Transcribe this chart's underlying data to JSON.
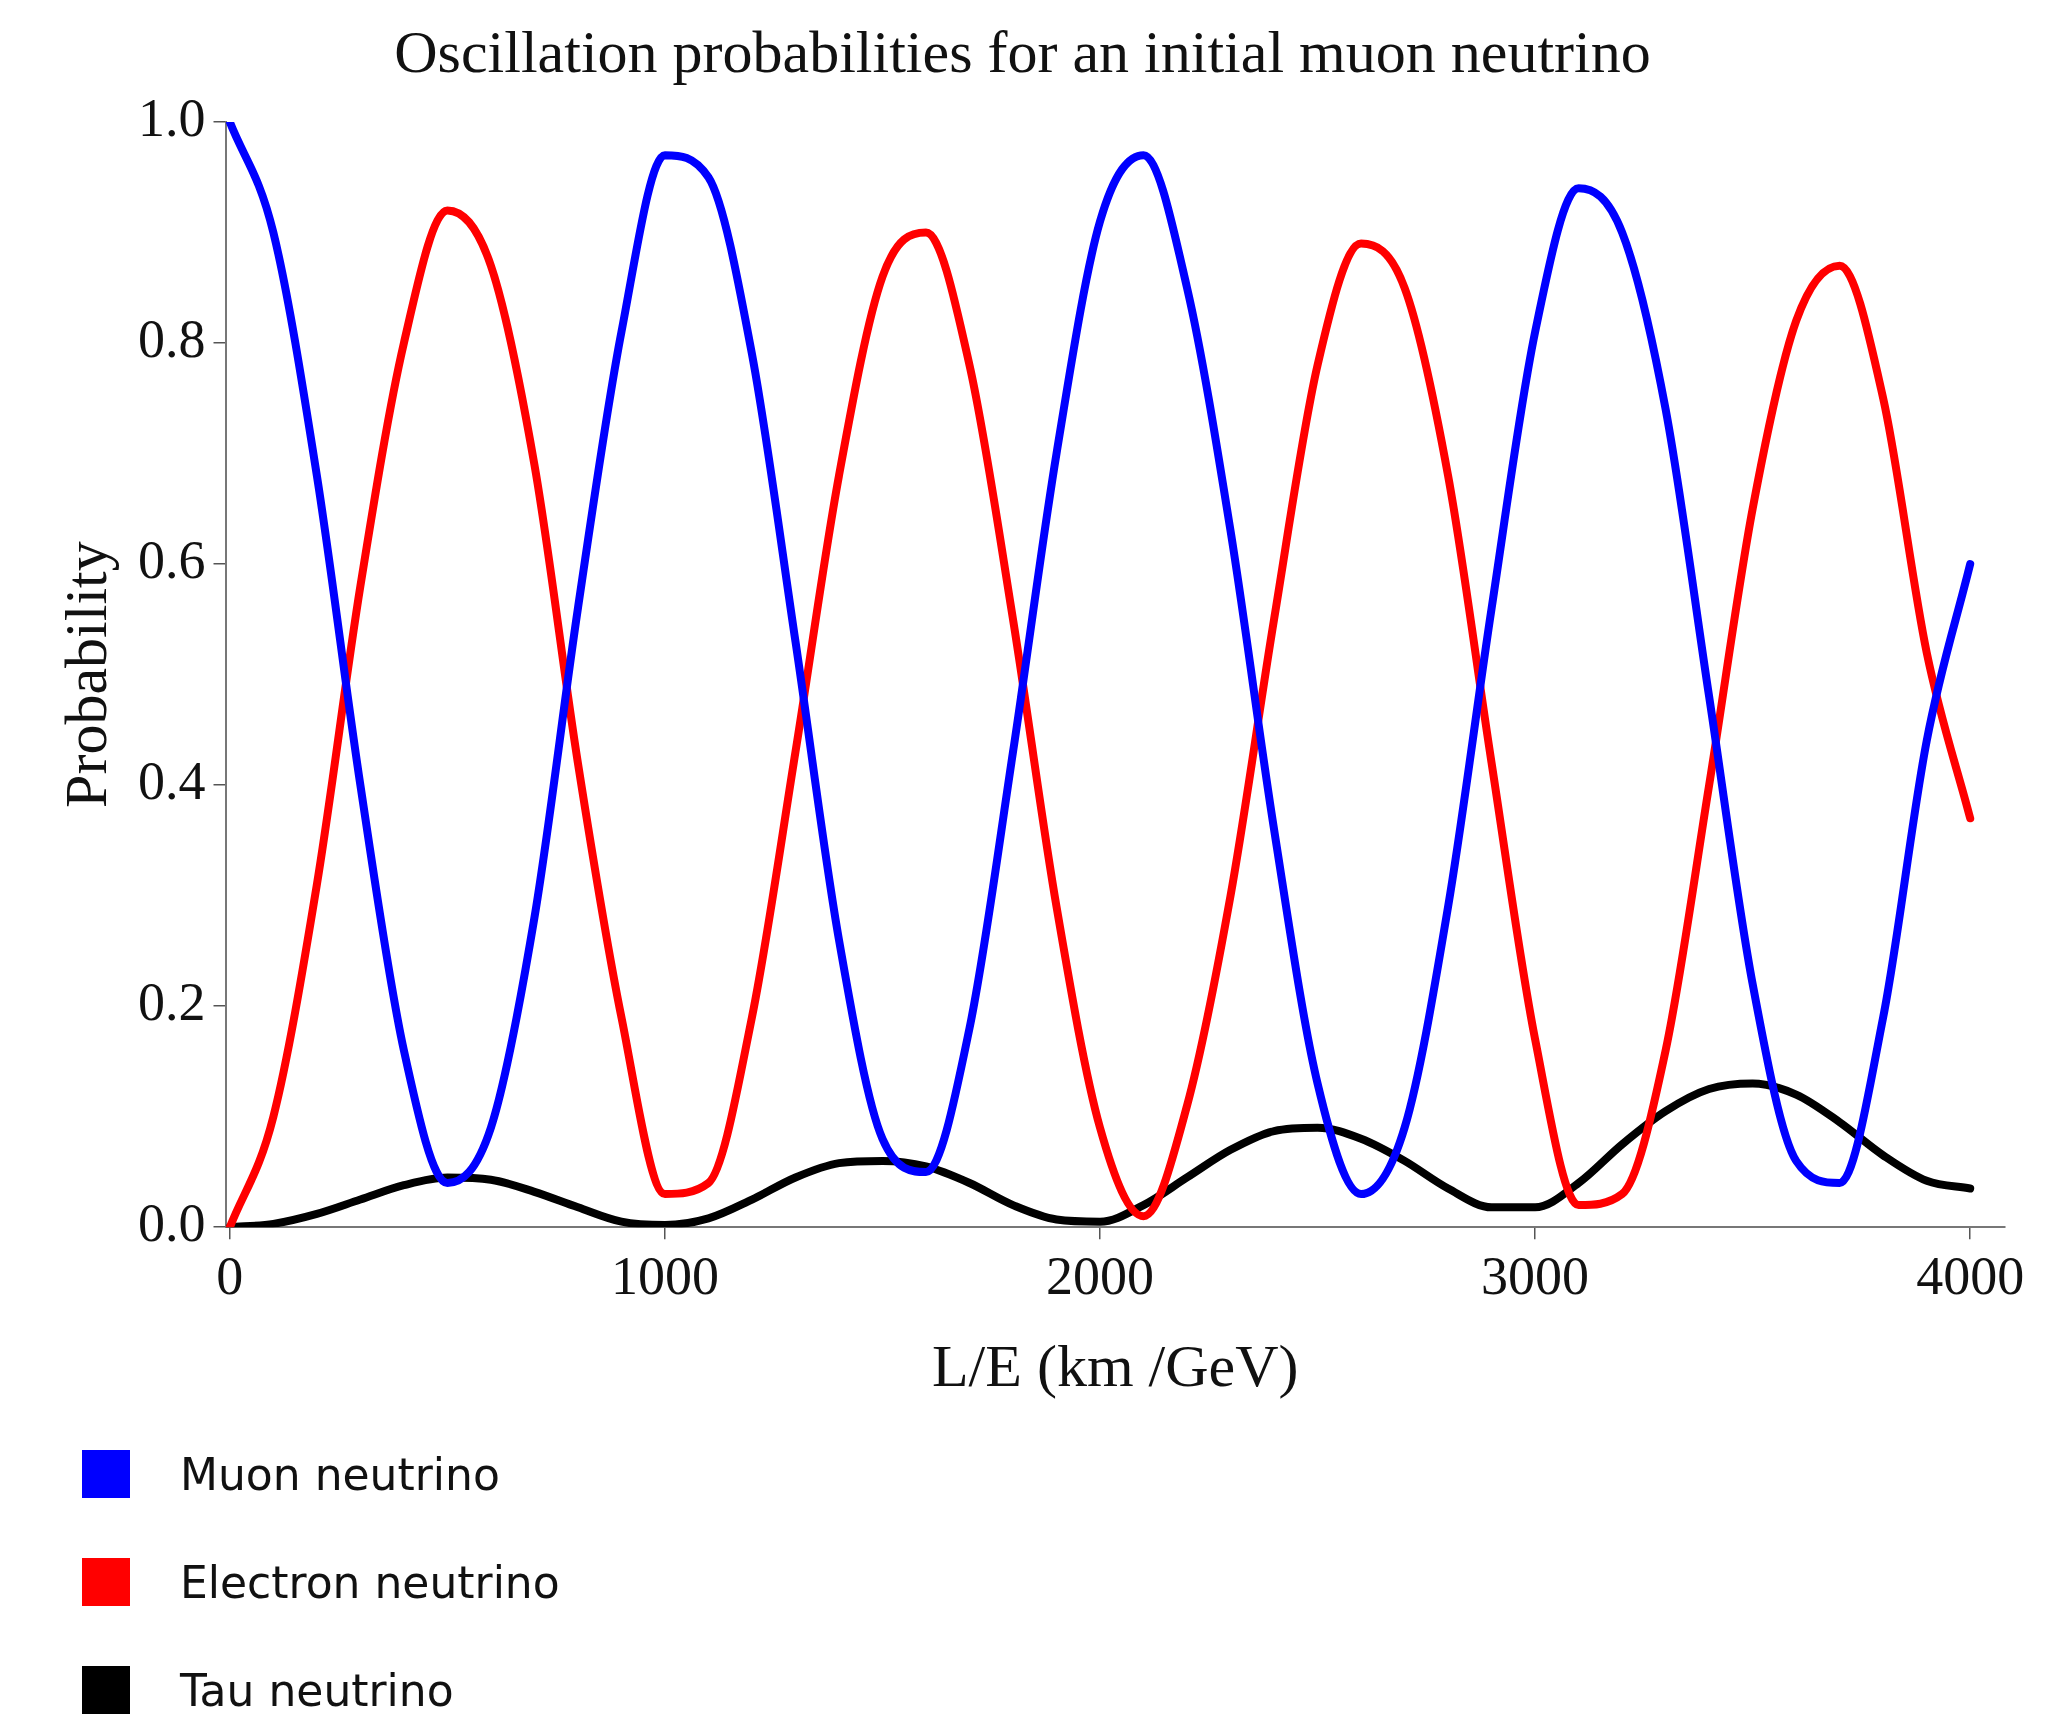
{
  "chart_data": {
    "type": "line",
    "title": "Oscillation probabilities for an initial muon neutrino",
    "xlabel": "L/E (km /GeV)",
    "ylabel": "Probability",
    "x": [
      0,
      100,
      200,
      300,
      400,
      500,
      600,
      700,
      800,
      900,
      1000,
      1100,
      1200,
      1300,
      1400,
      1500,
      1600,
      1700,
      1800,
      1900,
      2000,
      2100,
      2200,
      2300,
      2400,
      2500,
      2600,
      2700,
      2800,
      2900,
      3000,
      3100,
      3200,
      3300,
      3400,
      3500,
      3600,
      3700,
      3800,
      3900,
      4000
    ],
    "series": [
      {
        "name": "Muon neutrino",
        "color": "#0000ff",
        "values": [
          1.0,
          0.9,
          0.68,
          0.4,
          0.16,
          0.04,
          0.09,
          0.28,
          0.56,
          0.81,
          0.97,
          0.95,
          0.79,
          0.53,
          0.26,
          0.08,
          0.05,
          0.18,
          0.43,
          0.7,
          0.91,
          0.97,
          0.85,
          0.63,
          0.36,
          0.13,
          0.03,
          0.09,
          0.29,
          0.56,
          0.81,
          0.94,
          0.9,
          0.74,
          0.48,
          0.22,
          0.06,
          0.04,
          0.19,
          0.44,
          0.6
        ]
      },
      {
        "name": "Electron neutrino",
        "color": "#ff0000",
        "values": [
          0,
          0.1,
          0.31,
          0.58,
          0.8,
          0.92,
          0.87,
          0.69,
          0.42,
          0.19,
          0.03,
          0.04,
          0.19,
          0.43,
          0.68,
          0.86,
          0.9,
          0.78,
          0.55,
          0.29,
          0.09,
          0.01,
          0.11,
          0.3,
          0.55,
          0.78,
          0.89,
          0.85,
          0.68,
          0.42,
          0.17,
          0.02,
          0.03,
          0.16,
          0.4,
          0.65,
          0.82,
          0.87,
          0.75,
          0.52,
          0.37
        ]
      },
      {
        "name": "Tau neutrino",
        "color": "#000000",
        "values": [
          0,
          0.003,
          0.012,
          0.025,
          0.038,
          0.045,
          0.043,
          0.032,
          0.018,
          0.005,
          0.002,
          0.008,
          0.025,
          0.045,
          0.058,
          0.06,
          0.055,
          0.04,
          0.02,
          0.007,
          0.005,
          0.02,
          0.045,
          0.07,
          0.087,
          0.09,
          0.08,
          0.06,
          0.035,
          0.018,
          0.018,
          0.04,
          0.075,
          0.105,
          0.125,
          0.13,
          0.12,
          0.095,
          0.065,
          0.042,
          0.035
        ]
      }
    ],
    "xlim": [
      -10,
      4080
    ],
    "xticks": [
      0,
      1000,
      2000,
      3000,
      4000
    ],
    "ylim": [
      0,
      1
    ],
    "yticks": [
      {
        "value": 0,
        "label": "0.0"
      },
      {
        "value": 0.2,
        "label": "0.2"
      },
      {
        "value": 0.4,
        "label": "0.4"
      },
      {
        "value": 0.6,
        "label": "0.6"
      },
      {
        "value": 0.8,
        "label": "0.8"
      },
      {
        "value": 1,
        "label": "1.0"
      }
    ],
    "grid": false,
    "legend": "bottom left",
    "marker": "none",
    "line_style": "solid"
  }
}
